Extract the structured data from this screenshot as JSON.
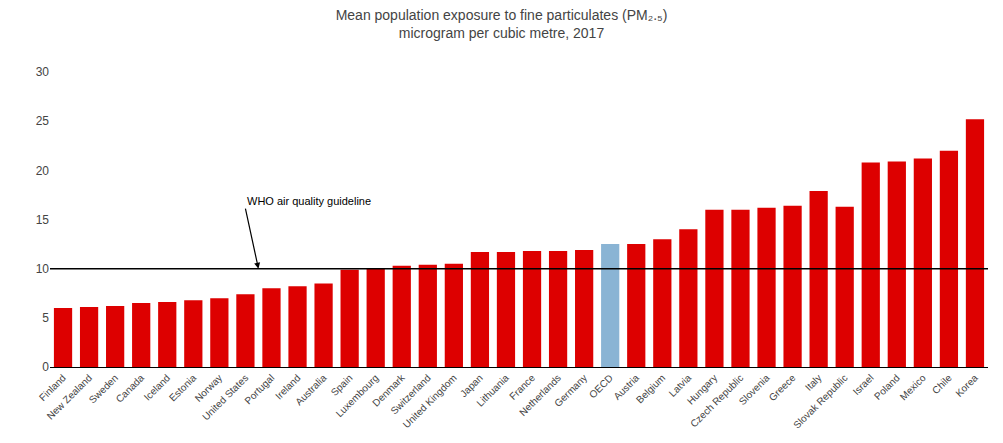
{
  "chart_data": {
    "type": "bar",
    "title": "Mean population exposure to fine particulates (PM₂.₅)",
    "subtitle": "microgram per cubic metre, 2017",
    "categories": [
      "Finland",
      "New Zealand",
      "Sweden",
      "Canada",
      "Iceland",
      "Estonia",
      "Norway",
      "United States",
      "Portugal",
      "Ireland",
      "Australia",
      "Spain",
      "Luxembourg",
      "Denmark",
      "Switzerland",
      "United Kingdom",
      "Japan",
      "Lithuania",
      "France",
      "Netherlands",
      "Germany",
      "OECD",
      "Austria",
      "Belgium",
      "Latvia",
      "Hungary",
      "Czech Republic",
      "Slovenia",
      "Greece",
      "Italy",
      "Slovak Republic",
      "Israel",
      "Poland",
      "Mexico",
      "Chile",
      "Korea"
    ],
    "values": [
      6.0,
      6.1,
      6.2,
      6.5,
      6.6,
      6.8,
      7.0,
      7.4,
      8.0,
      8.2,
      8.5,
      9.9,
      10.0,
      10.3,
      10.4,
      10.5,
      11.7,
      11.7,
      11.8,
      11.8,
      11.9,
      12.5,
      12.5,
      13.0,
      14.0,
      16.0,
      16.0,
      16.2,
      16.4,
      17.9,
      16.3,
      20.8,
      20.9,
      21.2,
      22.0,
      25.2
    ],
    "colors": [
      "#dd0000",
      "#dd0000",
      "#dd0000",
      "#dd0000",
      "#dd0000",
      "#dd0000",
      "#dd0000",
      "#dd0000",
      "#dd0000",
      "#dd0000",
      "#dd0000",
      "#dd0000",
      "#dd0000",
      "#dd0000",
      "#dd0000",
      "#dd0000",
      "#dd0000",
      "#dd0000",
      "#dd0000",
      "#dd0000",
      "#dd0000",
      "#8ab4d4",
      "#dd0000",
      "#dd0000",
      "#dd0000",
      "#dd0000",
      "#dd0000",
      "#dd0000",
      "#dd0000",
      "#dd0000",
      "#dd0000",
      "#dd0000",
      "#dd0000",
      "#dd0000",
      "#dd0000",
      "#dd0000"
    ],
    "guideline": 10.0,
    "annotations": [
      "WHO air quality guideline"
    ],
    "ylim": [
      0,
      30
    ],
    "yticks": [
      0,
      5,
      10,
      15,
      20,
      25,
      30
    ],
    "grid": false
  }
}
